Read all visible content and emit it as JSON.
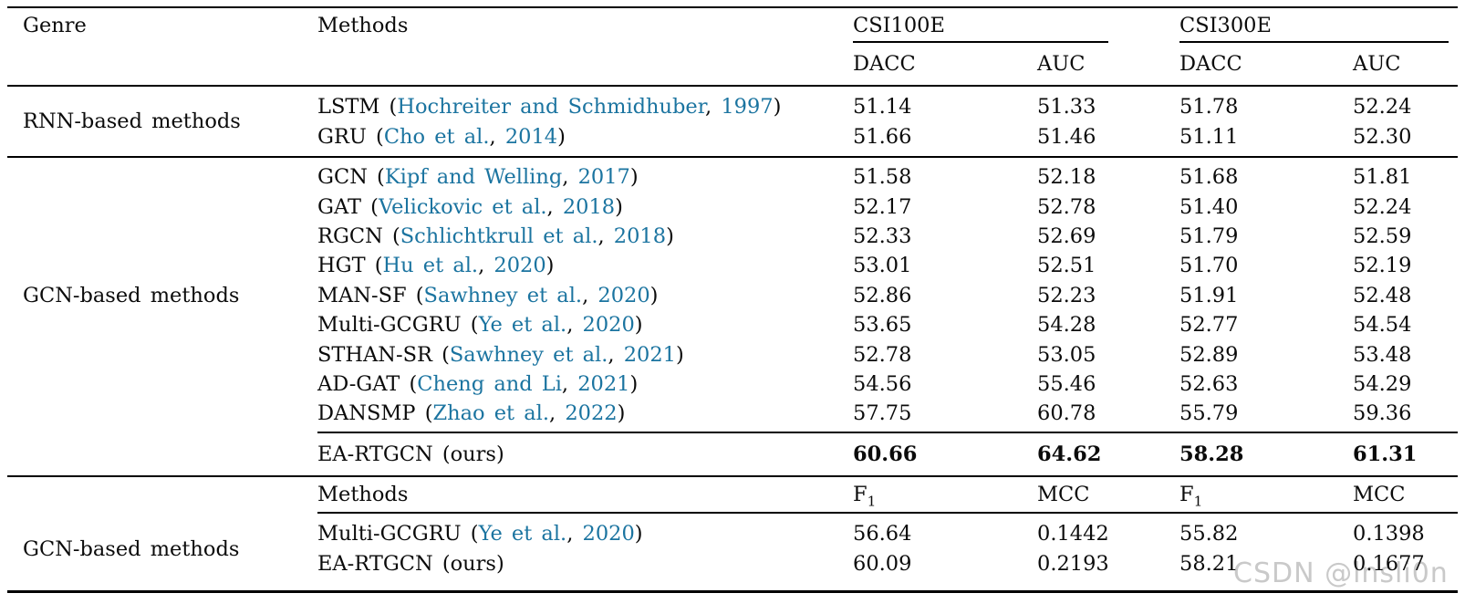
{
  "colors": {
    "link": "#1b74a0",
    "text": "#0b0b0b",
    "rule": "#000000",
    "watermark": "#bbbbbb"
  },
  "watermark": "CSDN @lnsli0n",
  "header": {
    "genre_label": "Genre",
    "methods_label": "Methods",
    "groups": [
      {
        "label": "CSI100E",
        "cols": [
          "DACC",
          "AUC"
        ]
      },
      {
        "label": "CSI300E",
        "cols": [
          "DACC",
          "AUC"
        ]
      }
    ]
  },
  "sections": [
    {
      "genre": "RNN-based methods",
      "rows": [
        {
          "prefix": "LSTM (",
          "authors": "Hochreiter and Schmidhuber",
          "sep": ", ",
          "year": "1997",
          "close": ")",
          "v": [
            "51.14",
            "51.33",
            "51.78",
            "52.24"
          ]
        },
        {
          "prefix": "GRU (",
          "authors": "Cho et al.",
          "sep": ", ",
          "year": "2014",
          "close": ")",
          "v": [
            "51.66",
            "51.46",
            "51.11",
            "52.30"
          ]
        }
      ]
    },
    {
      "genre": "GCN-based methods",
      "rows": [
        {
          "prefix": "GCN (",
          "authors": "Kipf and Welling",
          "sep": ", ",
          "year": "2017",
          "close": ")",
          "v": [
            "51.58",
            "52.18",
            "51.68",
            "51.81"
          ]
        },
        {
          "prefix": "GAT (",
          "authors": "Velickovic et al.",
          "sep": ", ",
          "year": "2018",
          "close": ")",
          "v": [
            "52.17",
            "52.78",
            "51.40",
            "52.24"
          ]
        },
        {
          "prefix": "RGCN (",
          "authors": "Schlichtkrull et al.",
          "sep": ", ",
          "year": "2018",
          "close": ")",
          "v": [
            "52.33",
            "52.69",
            "51.79",
            "52.59"
          ]
        },
        {
          "prefix": "HGT (",
          "authors": "Hu et al.",
          "sep": ", ",
          "year": "2020",
          "close": ")",
          "v": [
            "53.01",
            "52.51",
            "51.70",
            "52.19"
          ]
        },
        {
          "prefix": "MAN-SF (",
          "authors": "Sawhney et al.",
          "sep": ", ",
          "year": "2020",
          "close": ")",
          "v": [
            "52.86",
            "52.23",
            "51.91",
            "52.48"
          ]
        },
        {
          "prefix": "Multi-GCGRU (",
          "authors": "Ye et al.",
          "sep": ", ",
          "year": "2020",
          "close": ")",
          "v": [
            "53.65",
            "54.28",
            "52.77",
            "54.54"
          ]
        },
        {
          "prefix": "STHAN-SR (",
          "authors": "Sawhney et al.",
          "sep": ", ",
          "year": "2021",
          "close": ")",
          "v": [
            "52.78",
            "53.05",
            "52.89",
            "53.48"
          ]
        },
        {
          "prefix": "AD-GAT (",
          "authors": "Cheng and Li",
          "sep": ", ",
          "year": "2021",
          "close": ")",
          "v": [
            "54.56",
            "55.46",
            "52.63",
            "54.29"
          ]
        },
        {
          "prefix": "DANSMP (",
          "authors": "Zhao et al.",
          "sep": ", ",
          "year": "2022",
          "close": ")",
          "v": [
            "57.75",
            "60.78",
            "55.79",
            "59.36"
          ]
        }
      ],
      "ours": {
        "label": "EA-RTGCN (ours)",
        "v": [
          "60.66",
          "64.62",
          "58.28",
          "61.31"
        ]
      }
    },
    {
      "genre": "GCN-based methods",
      "subheader": {
        "methods_label": "Methods",
        "cols": [
          {
            "t": "F",
            "s": "1"
          },
          {
            "t": "MCC",
            "s": ""
          },
          {
            "t": "F",
            "s": "1"
          },
          {
            "t": "MCC",
            "s": ""
          }
        ]
      },
      "rows": [
        {
          "prefix": "Multi-GCGRU (",
          "authors": "Ye et al.",
          "sep": ", ",
          "year": "2020",
          "close": ")",
          "v": [
            "56.64",
            "0.1442",
            "55.82",
            "0.1398"
          ]
        },
        {
          "prefix": "EA-RTGCN (ours)",
          "authors": "",
          "sep": "",
          "year": "",
          "close": "",
          "v": [
            "60.09",
            "0.2193",
            "58.21",
            "0.1677"
          ]
        }
      ]
    }
  ]
}
